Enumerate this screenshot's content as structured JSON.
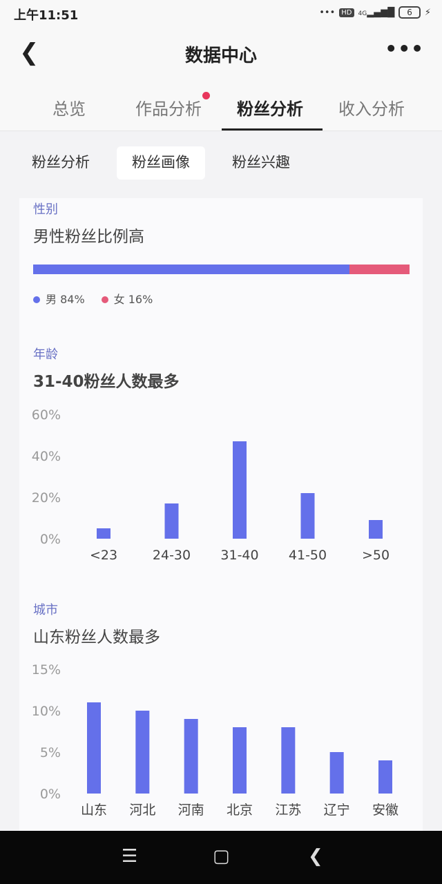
{
  "status": {
    "time": "上午11:51",
    "hd": "HD",
    "network": "4G",
    "battery": "6"
  },
  "header": {
    "title": "数据中心"
  },
  "tabs": [
    {
      "label": "总览"
    },
    {
      "label": "作品分析",
      "badge": true
    },
    {
      "label": "粉丝分析",
      "active": true
    },
    {
      "label": "收入分析"
    }
  ],
  "subtabs": [
    {
      "label": "粉丝分析"
    },
    {
      "label": "粉丝画像",
      "active": true
    },
    {
      "label": "粉丝兴趣"
    }
  ],
  "colors": {
    "male": "#6470ea",
    "female": "#e55a7a",
    "bar": "#6470ea",
    "accent_label": "#6870c4"
  },
  "gender": {
    "label": "性别",
    "headline": "男性粉丝比例高",
    "male_label": "男 84%",
    "female_label": "女 16%",
    "male_pct": 84,
    "female_pct": 16
  },
  "chart_data": [
    {
      "type": "bar",
      "title": "年龄",
      "subtitle": "31-40粉丝人数最多",
      "categories": [
        "<23",
        "24-30",
        "31-40",
        "41-50",
        ">50"
      ],
      "values": [
        5,
        17,
        47,
        22,
        9
      ],
      "yticks": [
        "0%",
        "20%",
        "40%",
        "60%"
      ],
      "ylim": [
        0,
        60
      ],
      "grid": false
    },
    {
      "type": "bar",
      "title": "城市",
      "subtitle": "山东粉丝人数最多",
      "categories": [
        "山东",
        "河北",
        "河南",
        "北京",
        "江苏",
        "辽宁",
        "安徽"
      ],
      "values": [
        11,
        10,
        9,
        8,
        8,
        5,
        4
      ],
      "yticks": [
        "0%",
        "5%",
        "10%",
        "15%"
      ],
      "ylim": [
        0,
        15
      ],
      "grid": false
    }
  ],
  "nav": {
    "icons": [
      "menu-icon",
      "home-icon",
      "back-icon"
    ]
  }
}
